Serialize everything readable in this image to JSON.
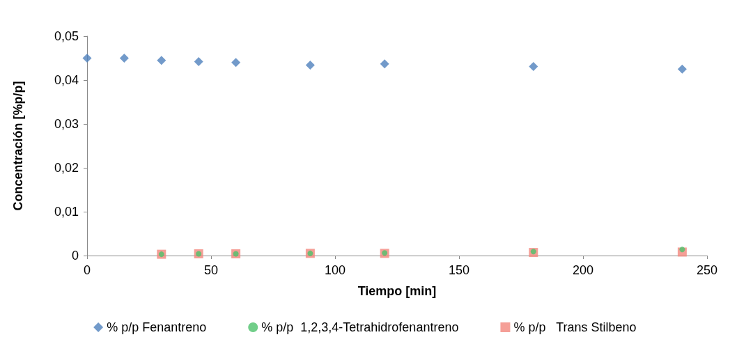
{
  "chart_data": {
    "type": "scatter",
    "xlabel": "Tiempo [min]",
    "ylabel": "Concentración [%p/p]",
    "xlim": [
      0,
      250
    ],
    "xticks": [
      0,
      50,
      100,
      150,
      200,
      250
    ],
    "ylim": [
      0,
      0.05
    ],
    "yticks": [
      {
        "value": 0,
        "label": "0"
      },
      {
        "value": 0.01,
        "label": "0,01"
      },
      {
        "value": 0.02,
        "label": "0,02"
      },
      {
        "value": 0.03,
        "label": "0,03"
      },
      {
        "value": 0.04,
        "label": "0,04"
      },
      {
        "value": 0.05,
        "label": "0,05"
      }
    ],
    "grid": false,
    "legend": "bottom",
    "series": [
      {
        "name": "% p/p Fenantreno",
        "color": "#4f81bd",
        "marker": "diamond",
        "x": [
          0,
          15,
          30,
          45,
          60,
          90,
          120,
          180,
          240
        ],
        "values": [
          0.045,
          0.045,
          0.0445,
          0.0442,
          0.044,
          0.0434,
          0.0437,
          0.0431,
          0.0425
        ]
      },
      {
        "name": "% p/p  1,2,3,4-Tetrahidrofenantreno",
        "color": "#4ec26b",
        "marker": "circle",
        "x": [
          30,
          45,
          60,
          90,
          120,
          180,
          240
        ],
        "values": [
          0.0003,
          0.0004,
          0.0004,
          0.0005,
          0.0006,
          0.0009,
          0.0014
        ]
      },
      {
        "name": "% p/p   Trans Stilbeno",
        "color": "#f2877d",
        "marker": "square",
        "x": [
          30,
          45,
          60,
          90,
          120,
          180,
          240
        ],
        "values": [
          0.0003,
          0.0004,
          0.0004,
          0.0005,
          0.0005,
          0.0007,
          0.0008
        ]
      }
    ]
  }
}
